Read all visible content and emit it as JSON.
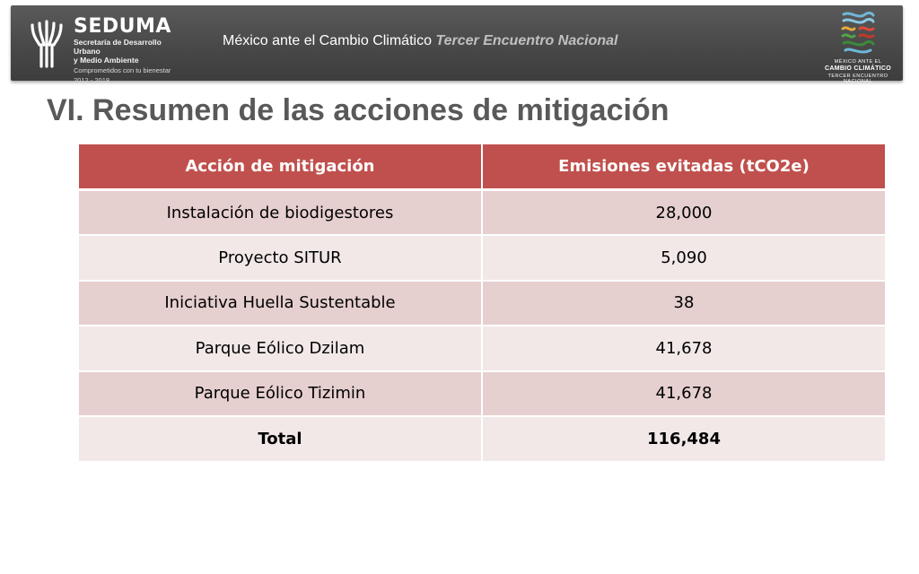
{
  "header": {
    "logo": {
      "name": "SEDUMA",
      "subtitle_line1": "Secretaría de Desarrollo Urbano",
      "subtitle_line2": "y Medio Ambiente",
      "motto": "Comprometidos con tu bienestar",
      "years": "2012 - 2018"
    },
    "caption_main": "México ante el Cambio Climático",
    "caption_sub": "Tercer Encuentro Nacional",
    "right_logo": {
      "line1": "MÉXICO ANTE EL",
      "line2": "CAMBIO CLIMÁTICO",
      "line3": "TERCER ENCUENTRO NACIONAL"
    }
  },
  "title": "VI. Resumen de las acciones de mitigación",
  "table": {
    "headers": [
      "Acción de mitigación",
      "Emisiones evitadas (tCO2e)"
    ],
    "rows": [
      {
        "action": "Instalación de biodigestores",
        "emissions": "28,000"
      },
      {
        "action": "Proyecto SITUR",
        "emissions": "5,090"
      },
      {
        "action": "Iniciativa Huella Sustentable",
        "emissions": "38"
      },
      {
        "action": "Parque Eólico Dzilam",
        "emissions": "41,678"
      },
      {
        "action": "Parque Eólico Tizimin",
        "emissions": "41,678"
      }
    ],
    "total": {
      "label": "Total",
      "value": "116,484"
    }
  },
  "colors": {
    "header_bar": "#474747",
    "table_header": "#c0504d",
    "row_odd": "#e6cfcf",
    "row_even": "#f2e8e8",
    "title_text": "#595959"
  }
}
